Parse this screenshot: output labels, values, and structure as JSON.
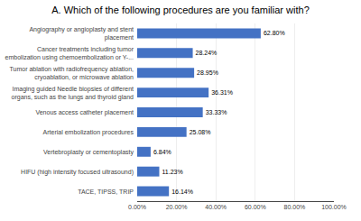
{
  "chart_data": {
    "type": "bar",
    "orientation": "horizontal",
    "title": "A. Which of the following procedures are you familiar with?",
    "categories": [
      "TACE, TIPSS, TRIP",
      "HIFU (high intensity focused ultrasound)",
      "Vertebroplasty or cementoplasty",
      "Arterial embolization procedures",
      "Venous access catheter placement",
      "Imaging guided Needle biopsies of different\norgans, such as the lungs and thyroid gland",
      "Tumor ablation with radiofrequency ablation,\ncryoablation, or microwave ablation",
      "Cancer treatments including tumor\nembolization using chemoembolization or Y-...",
      "Angiography or angioplasty and stent\nplacement"
    ],
    "values": [
      16.14,
      11.23,
      6.84,
      25.08,
      33.33,
      36.31,
      28.95,
      28.24,
      62.8
    ],
    "value_labels": [
      "16.14%",
      "11.23%",
      "6.84%",
      "25.08%",
      "33.33%",
      "36.31%",
      "28.95%",
      "28.24%",
      "62.80%"
    ],
    "data_labels": true,
    "color": "#4472C4",
    "xlim": [
      0,
      100
    ],
    "xticks": [
      {
        "value": 0,
        "label": "0.00%"
      },
      {
        "value": 20,
        "label": "20.00%"
      },
      {
        "value": 40,
        "label": "40.00%"
      },
      {
        "value": 60,
        "label": "60.00%"
      },
      {
        "value": 80,
        "label": "80.00%"
      },
      {
        "value": 100,
        "label": "100.00%"
      }
    ],
    "grid": true
  }
}
